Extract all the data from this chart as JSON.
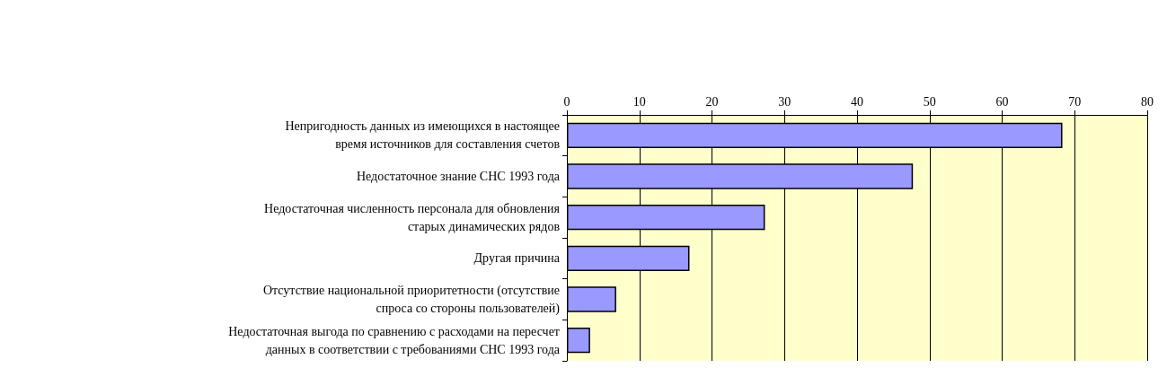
{
  "chart_data": {
    "type": "bar",
    "orientation": "horizontal",
    "categories": [
      "Непригодность данных из имеющихся в настоящее\nвремя источников для составления счетов",
      "Недостаточное знание СНС 1993 года",
      "Недостаточная численность персонала для обновления\nстарых динамических рядов",
      "Другая причина",
      "Отсутствие национальной приоритетности (отсутствие\nспроса со стороны пользователей)",
      "Недостаточная выгода по сравнению с расходами на пересчет\nданных в соответствии с требованиями СНС 1993 года"
    ],
    "values": [
      68.3,
      47.7,
      27.3,
      16.9,
      6.8,
      3.2
    ],
    "color": "#9999ff",
    "xlim": [
      0,
      80
    ],
    "xticks": [
      0,
      10,
      20,
      30,
      40,
      50,
      60,
      70,
      80
    ],
    "grid": "x"
  }
}
